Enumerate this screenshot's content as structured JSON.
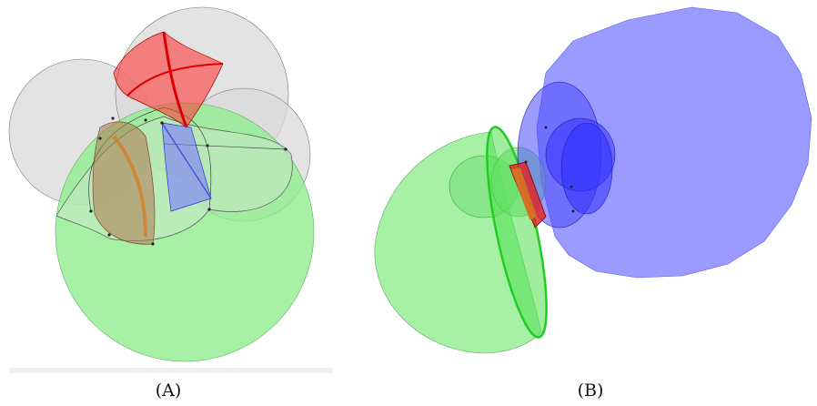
{
  "figure": {
    "panels": [
      {
        "caption": "(A)"
      },
      {
        "caption": "(B)"
      }
    ]
  },
  "colors": {
    "gray": "#d9d9d9",
    "green": "#90ee90",
    "red": "#ff3b3b",
    "blue": "#7a7aff",
    "brown": "#b07850",
    "orange": "#d97a20"
  }
}
